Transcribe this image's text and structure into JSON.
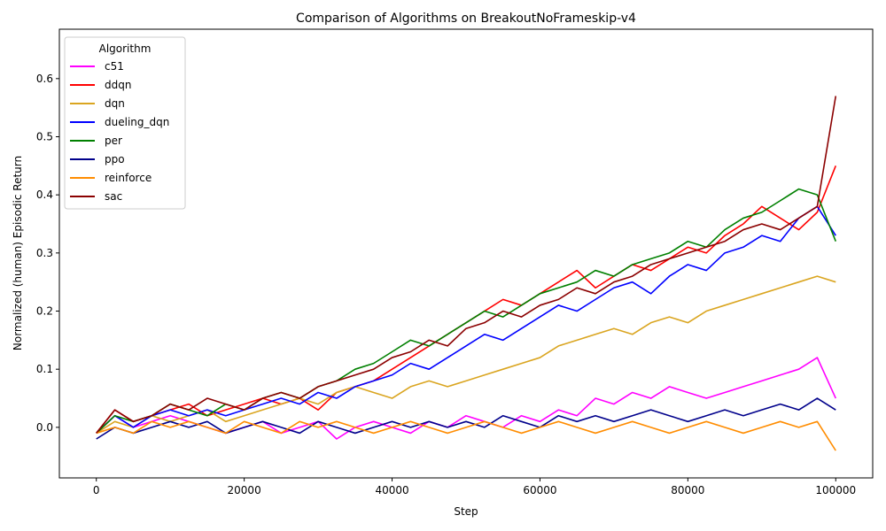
{
  "chart_data": {
    "type": "line",
    "title": "Comparison of Algorithms on BreakoutNoFrameskip-v4",
    "xlabel": "Step",
    "ylabel": "Normalized (human) Episodic Return",
    "xlim": [
      -5000,
      105000
    ],
    "ylim": [
      -0.087,
      0.685
    ],
    "xticks": [
      0,
      20000,
      40000,
      60000,
      80000,
      100000
    ],
    "xtick_labels": [
      "0",
      "20000",
      "40000",
      "60000",
      "80000",
      "100000"
    ],
    "yticks": [
      0.0,
      0.1,
      0.2,
      0.3,
      0.4,
      0.5,
      0.6
    ],
    "ytick_labels": [
      "0.0",
      "0.1",
      "0.2",
      "0.3",
      "0.4",
      "0.5",
      "0.6"
    ],
    "grid": false,
    "legend": {
      "title": "Algorithm",
      "placement": "upper-left"
    },
    "x": [
      0,
      2500,
      5000,
      7500,
      10000,
      12500,
      15000,
      17500,
      20000,
      22500,
      25000,
      27500,
      30000,
      32500,
      35000,
      37500,
      40000,
      42500,
      45000,
      47500,
      50000,
      52500,
      55000,
      57500,
      60000,
      62500,
      65000,
      67500,
      70000,
      72500,
      75000,
      77500,
      80000,
      82500,
      85000,
      87500,
      90000,
      92500,
      95000,
      97500,
      100000
    ],
    "series": [
      {
        "name": "c51",
        "color": "#ff00ff",
        "values": [
          -0.01,
          0.02,
          0.0,
          0.01,
          0.02,
          0.01,
          0.0,
          -0.01,
          0.0,
          0.01,
          -0.01,
          0.0,
          0.01,
          -0.02,
          0.0,
          0.01,
          0.0,
          -0.01,
          0.01,
          0.0,
          0.02,
          0.01,
          0.0,
          0.02,
          0.01,
          0.03,
          0.02,
          0.05,
          0.04,
          0.06,
          0.05,
          0.07,
          0.06,
          0.05,
          0.06,
          0.07,
          0.08,
          0.09,
          0.1,
          0.12,
          0.05
        ]
      },
      {
        "name": "ddqn",
        "color": "#ff0000",
        "values": [
          -0.01,
          0.03,
          0.01,
          0.02,
          0.03,
          0.04,
          0.02,
          0.03,
          0.04,
          0.05,
          0.04,
          0.05,
          0.03,
          0.06,
          0.07,
          0.08,
          0.1,
          0.12,
          0.14,
          0.16,
          0.18,
          0.2,
          0.22,
          0.21,
          0.23,
          0.25,
          0.27,
          0.24,
          0.26,
          0.28,
          0.27,
          0.29,
          0.31,
          0.3,
          0.33,
          0.35,
          0.38,
          0.36,
          0.34,
          0.37,
          0.45
        ]
      },
      {
        "name": "dqn",
        "color": "#daa520",
        "values": [
          -0.01,
          0.01,
          0.0,
          0.02,
          0.01,
          0.02,
          0.03,
          0.01,
          0.02,
          0.03,
          0.04,
          0.05,
          0.04,
          0.06,
          0.07,
          0.06,
          0.05,
          0.07,
          0.08,
          0.07,
          0.08,
          0.09,
          0.1,
          0.11,
          0.12,
          0.14,
          0.15,
          0.16,
          0.17,
          0.16,
          0.18,
          0.19,
          0.18,
          0.2,
          0.21,
          0.22,
          0.23,
          0.24,
          0.25,
          0.26,
          0.25
        ]
      },
      {
        "name": "dueling_dqn",
        "color": "#0000ff",
        "values": [
          -0.01,
          0.02,
          0.0,
          0.02,
          0.03,
          0.02,
          0.03,
          0.02,
          0.03,
          0.04,
          0.05,
          0.04,
          0.06,
          0.05,
          0.07,
          0.08,
          0.09,
          0.11,
          0.1,
          0.12,
          0.14,
          0.16,
          0.15,
          0.17,
          0.19,
          0.21,
          0.2,
          0.22,
          0.24,
          0.25,
          0.23,
          0.26,
          0.28,
          0.27,
          0.3,
          0.31,
          0.33,
          0.32,
          0.36,
          0.38,
          0.33
        ]
      },
      {
        "name": "per",
        "color": "#008000",
        "values": [
          -0.01,
          0.02,
          0.01,
          0.02,
          0.04,
          0.03,
          0.02,
          0.04,
          0.03,
          0.05,
          0.06,
          0.05,
          0.07,
          0.08,
          0.1,
          0.11,
          0.13,
          0.15,
          0.14,
          0.16,
          0.18,
          0.2,
          0.19,
          0.21,
          0.23,
          0.24,
          0.25,
          0.27,
          0.26,
          0.28,
          0.29,
          0.3,
          0.32,
          0.31,
          0.34,
          0.36,
          0.37,
          0.39,
          0.41,
          0.4,
          0.32
        ]
      },
      {
        "name": "ppo",
        "color": "#00008b",
        "values": [
          -0.02,
          0.0,
          -0.01,
          0.0,
          0.01,
          0.0,
          0.01,
          -0.01,
          0.0,
          0.01,
          0.0,
          -0.01,
          0.01,
          0.0,
          -0.01,
          0.0,
          0.01,
          0.0,
          0.01,
          0.0,
          0.01,
          0.0,
          0.02,
          0.01,
          0.0,
          0.02,
          0.01,
          0.02,
          0.01,
          0.02,
          0.03,
          0.02,
          0.01,
          0.02,
          0.03,
          0.02,
          0.03,
          0.04,
          0.03,
          0.05,
          0.03
        ]
      },
      {
        "name": "reinforce",
        "color": "#ff8c00",
        "values": [
          -0.01,
          0.0,
          -0.01,
          0.01,
          0.0,
          0.01,
          0.0,
          -0.01,
          0.01,
          0.0,
          -0.01,
          0.01,
          0.0,
          0.01,
          0.0,
          -0.01,
          0.0,
          0.01,
          0.0,
          -0.01,
          0.0,
          0.01,
          0.0,
          -0.01,
          0.0,
          0.01,
          0.0,
          -0.01,
          0.0,
          0.01,
          0.0,
          -0.01,
          0.0,
          0.01,
          0.0,
          -0.01,
          0.0,
          0.01,
          0.0,
          0.01,
          -0.04
        ]
      },
      {
        "name": "sac",
        "color": "#8b0000",
        "values": [
          -0.01,
          0.03,
          0.01,
          0.02,
          0.04,
          0.03,
          0.05,
          0.04,
          0.03,
          0.05,
          0.06,
          0.05,
          0.07,
          0.08,
          0.09,
          0.1,
          0.12,
          0.13,
          0.15,
          0.14,
          0.17,
          0.18,
          0.2,
          0.19,
          0.21,
          0.22,
          0.24,
          0.23,
          0.25,
          0.26,
          0.28,
          0.29,
          0.3,
          0.31,
          0.32,
          0.34,
          0.35,
          0.34,
          0.36,
          0.38,
          0.57
        ]
      }
    ]
  }
}
